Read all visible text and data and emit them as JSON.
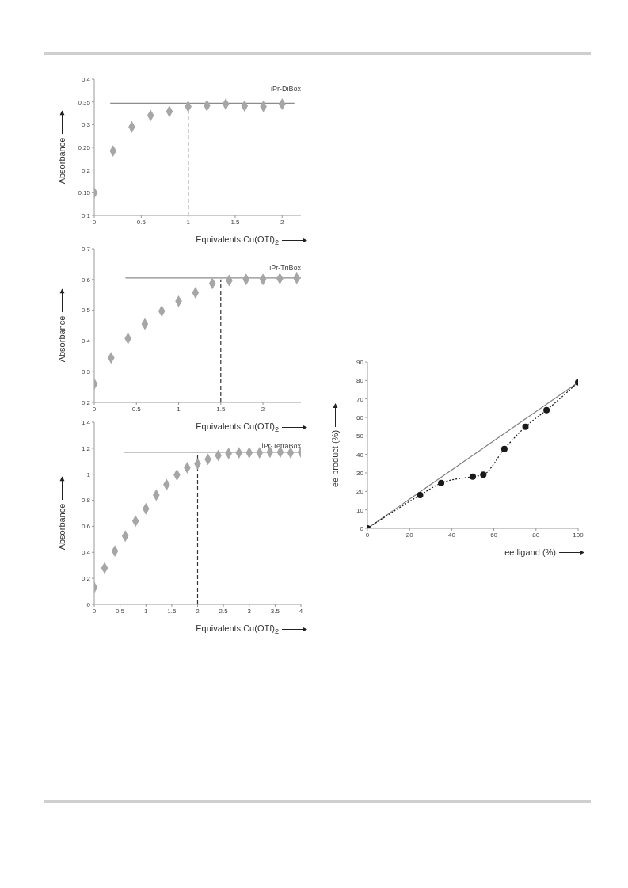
{
  "chart_data": [
    {
      "type": "scatter",
      "annotations": [
        "iPr-DiBox"
      ],
      "xlabel": "Equivalents Cu(OTf)$_{2}$",
      "ylabel": "Absorbance",
      "xlim": [
        0,
        2.2
      ],
      "xticks": [
        0,
        0.5,
        1,
        1.5,
        2
      ],
      "ylim": [
        0.1,
        0.4
      ],
      "yticks": [
        0.1,
        0.15,
        0.2,
        0.25,
        0.3,
        0.35,
        0.4
      ],
      "marker": "diamond",
      "series": [
        {
          "color": "#a6a6a6",
          "x": [
            0,
            0.2,
            0.4,
            0.6,
            0.8,
            1,
            1.2,
            1.4,
            1.6,
            1.8,
            2
          ],
          "values": [
            0.15,
            0.242,
            0.295,
            0.32,
            0.329,
            0.34,
            0.342,
            0.345,
            0.341,
            0.34,
            0.345
          ]
        },
        {
          "type": "line",
          "color": "#8c8c8c",
          "line_style": "solid",
          "marker": "none",
          "x": [
            0.17,
            2.13
          ],
          "values": [
            0.347,
            0.347
          ]
        },
        {
          "type": "line",
          "color": "#333333",
          "line_style": "dashed",
          "marker": "none",
          "x": [
            1,
            1
          ],
          "values": [
            0.1,
            0.34
          ]
        }
      ]
    },
    {
      "type": "scatter",
      "annotations": [
        "iPr-TriBox"
      ],
      "xlabel": "Equivalents Cu(OTf)$_{2}$",
      "ylabel": "Absorbance",
      "xlim": [
        0,
        2.45
      ],
      "xticks": [
        0,
        0.5,
        1,
        1.5,
        2
      ],
      "ylim": [
        0.2,
        0.7
      ],
      "yticks": [
        0.2,
        0.3,
        0.4,
        0.5,
        0.6,
        0.7
      ],
      "marker": "diamond",
      "series": [
        {
          "color": "#a6a6a6",
          "x": [
            0,
            0.2,
            0.4,
            0.6,
            0.8,
            1,
            1.2,
            1.4,
            1.6,
            1.8,
            2,
            2.2,
            2.4
          ],
          "values": [
            0.26,
            0.345,
            0.408,
            0.455,
            0.497,
            0.529,
            0.557,
            0.587,
            0.597,
            0.6,
            0.6,
            0.603,
            0.604
          ]
        },
        {
          "type": "line",
          "color": "#8c8c8c",
          "line_style": "solid",
          "marker": "none",
          "x": [
            0.37,
            2.45
          ],
          "values": [
            0.605,
            0.605
          ]
        },
        {
          "type": "line",
          "color": "#333333",
          "line_style": "dashed",
          "marker": "none",
          "x": [
            1.5,
            1.5
          ],
          "values": [
            0.2,
            0.6
          ]
        }
      ]
    },
    {
      "type": "scatter",
      "annotations": [
        "iPr-TetraBox"
      ],
      "xlabel": "Equivalents Cu(OTf)$_{2}$",
      "ylabel": "Absorbance",
      "xlim": [
        0,
        4
      ],
      "xticks": [
        0,
        0.5,
        1,
        1.5,
        2,
        2.5,
        3,
        3.5,
        4
      ],
      "ylim": [
        0,
        1.4
      ],
      "yticks": [
        0,
        0.2,
        0.4,
        0.6,
        0.8,
        1,
        1.2,
        1.4
      ],
      "marker": "diamond",
      "series": [
        {
          "color": "#a6a6a6",
          "x": [
            0,
            0.2,
            0.4,
            0.6,
            0.8,
            1,
            1.2,
            1.4,
            1.6,
            1.8,
            2,
            2.2,
            2.4,
            2.6,
            2.8,
            3,
            3.2,
            3.4,
            3.6,
            3.8,
            4
          ],
          "values": [
            0.13,
            0.28,
            0.41,
            0.525,
            0.64,
            0.735,
            0.84,
            0.92,
            0.995,
            1.05,
            1.08,
            1.115,
            1.145,
            1.16,
            1.165,
            1.165,
            1.165,
            1.17,
            1.17,
            1.165,
            1.17
          ]
        },
        {
          "type": "line",
          "color": "#8c8c8c",
          "line_style": "solid",
          "marker": "none",
          "x": [
            0.58,
            4
          ],
          "values": [
            1.17,
            1.17
          ]
        },
        {
          "type": "line",
          "color": "#333333",
          "line_style": "dashed",
          "marker": "none",
          "x": [
            2,
            2
          ],
          "values": [
            0,
            1.16
          ]
        }
      ]
    },
    {
      "type": "line",
      "xlabel": "ee ligand (%)",
      "ylabel": "ee product (%)",
      "xlim": [
        0,
        100
      ],
      "xticks": [
        0,
        20,
        40,
        60,
        80,
        100
      ],
      "ylim": [
        0,
        90
      ],
      "yticks": [
        0,
        10,
        20,
        30,
        40,
        50,
        60,
        70,
        80,
        90
      ],
      "series": [
        {
          "color": "#808080",
          "line_style": "solid",
          "marker": "none",
          "x": [
            0,
            100
          ],
          "values": [
            0,
            79
          ]
        },
        {
          "color": "#1a1a1a",
          "line_style": "dotted",
          "marker": "circle",
          "x": [
            0,
            25,
            35,
            50,
            55,
            65,
            75,
            85,
            100
          ],
          "values": [
            0,
            18,
            24.5,
            28,
            29,
            43,
            55,
            64,
            79
          ]
        }
      ]
    }
  ]
}
